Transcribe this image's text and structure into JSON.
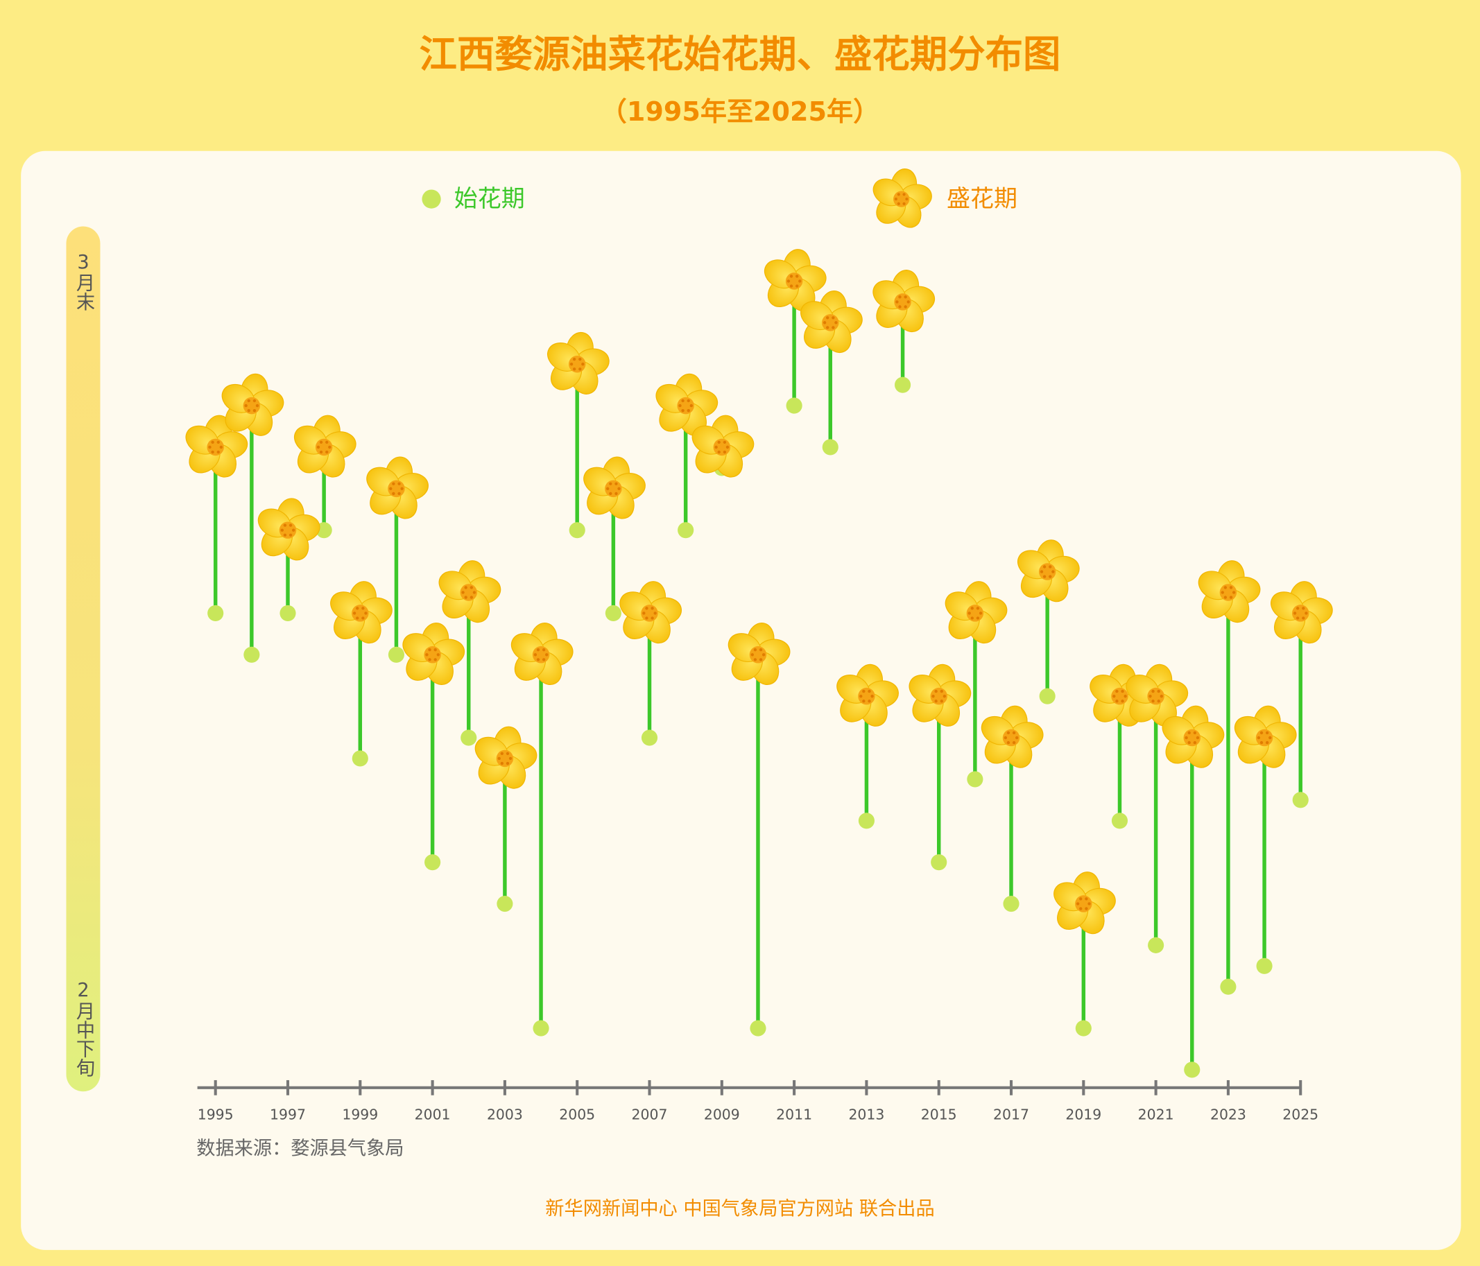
{
  "chart_data": {
    "type": "dumbbell",
    "title": "江西婺源油菜花始花期、盛花期分布图",
    "subtitle": "（1995年至2025年）",
    "source": "数据来源：婺源县气象局",
    "credit": "新华网新闻中心 中国气象局官方网站 联合出品",
    "x": [
      1995,
      1996,
      1997,
      1998,
      1999,
      2000,
      2001,
      2002,
      2003,
      2004,
      2005,
      2006,
      2007,
      2008,
      2009,
      2010,
      2011,
      2012,
      2013,
      2014,
      2015,
      2016,
      2017,
      2018,
      2019,
      2020,
      2021,
      2022,
      2023,
      2024,
      2025
    ],
    "series": [
      {
        "name": "始花期",
        "color": "#c8e65a",
        "values": [
          71,
          69,
          71,
          75,
          64,
          69,
          59,
          65,
          57,
          51,
          75,
          71,
          65,
          75,
          78,
          51,
          81,
          79,
          61,
          82,
          59,
          63,
          57,
          67,
          51,
          61,
          55,
          49,
          53,
          54,
          62
        ]
      },
      {
        "name": "盛花期",
        "color": "#fcd535",
        "values": [
          79,
          81,
          75,
          79,
          71,
          77,
          69,
          72,
          64,
          69,
          83,
          77,
          71,
          81,
          79,
          69,
          87,
          85,
          67,
          86,
          67,
          71,
          65,
          73,
          57,
          67,
          67,
          65,
          72,
          65,
          71
        ]
      }
    ],
    "stem_color": "#3cc82a",
    "xlim": [
      1994.5,
      2025
    ],
    "xticks": [
      1995,
      1997,
      1999,
      2001,
      2003,
      2005,
      2007,
      2009,
      2011,
      2013,
      2015,
      2017,
      2019,
      2021,
      2023,
      2025
    ],
    "ylim": [
      48,
      90
    ],
    "yticks": [
      {
        "value": 51,
        "label": "2月中下旬"
      },
      {
        "value": 87,
        "label": "3月末"
      }
    ]
  }
}
